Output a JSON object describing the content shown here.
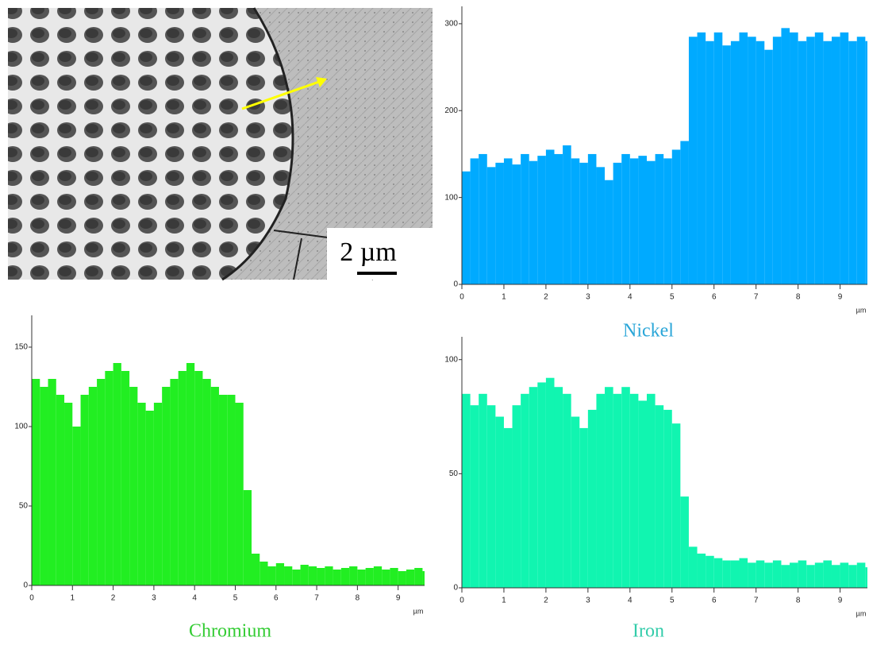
{
  "image": {
    "scale_label": "2 µm"
  },
  "chart_data": [
    {
      "type": "bar",
      "title": "Nickel",
      "x_unit": "µm",
      "color": "#00aaff",
      "title_color": "#2aa6d8",
      "x": [
        0,
        0.2,
        0.4,
        0.6,
        0.8,
        1,
        1.2,
        1.4,
        1.6,
        1.8,
        2,
        2.2,
        2.4,
        2.6,
        2.8,
        3,
        3.2,
        3.4,
        3.6,
        3.8,
        4,
        4.2,
        4.4,
        4.6,
        4.8,
        5,
        5.2,
        5.4,
        5.6,
        5.8,
        6,
        6.2,
        6.4,
        6.6,
        6.8,
        7,
        7.2,
        7.4,
        7.6,
        7.8,
        8,
        8.2,
        8.4,
        8.6,
        8.8,
        9,
        9.2,
        9.4,
        9.6
      ],
      "values": [
        130,
        145,
        150,
        135,
        140,
        145,
        138,
        150,
        142,
        148,
        155,
        150,
        160,
        145,
        140,
        150,
        135,
        120,
        140,
        150,
        145,
        148,
        142,
        150,
        145,
        155,
        165,
        285,
        290,
        280,
        290,
        275,
        280,
        290,
        285,
        280,
        270,
        285,
        295,
        290,
        280,
        285,
        290,
        280,
        285,
        290,
        280,
        285,
        280
      ],
      "xlim": [
        0,
        9.65
      ],
      "xticks": [
        0,
        1,
        2,
        3,
        4,
        5,
        6,
        7,
        8,
        9
      ],
      "ylim": [
        0,
        320
      ],
      "yticks": [
        0,
        100,
        200,
        300
      ]
    },
    {
      "type": "bar",
      "title": "Chromium",
      "x_unit": "µm",
      "color": "#22ee22",
      "title_color": "#33cc33",
      "x": [
        0,
        0.2,
        0.4,
        0.6,
        0.8,
        1,
        1.2,
        1.4,
        1.6,
        1.8,
        2,
        2.2,
        2.4,
        2.6,
        2.8,
        3,
        3.2,
        3.4,
        3.6,
        3.8,
        4,
        4.2,
        4.4,
        4.6,
        4.8,
        5,
        5.2,
        5.4,
        5.6,
        5.8,
        6,
        6.2,
        6.4,
        6.6,
        6.8,
        7,
        7.2,
        7.4,
        7.6,
        7.8,
        8,
        8.2,
        8.4,
        8.6,
        8.8,
        9,
        9.2,
        9.4,
        9.6
      ],
      "values": [
        130,
        125,
        130,
        120,
        115,
        100,
        120,
        125,
        130,
        135,
        140,
        135,
        125,
        115,
        110,
        115,
        125,
        130,
        135,
        140,
        135,
        130,
        125,
        120,
        120,
        115,
        60,
        20,
        15,
        12,
        14,
        12,
        10,
        13,
        12,
        11,
        12,
        10,
        11,
        12,
        10,
        11,
        12,
        10,
        11,
        9,
        10,
        11,
        9
      ],
      "xlim": [
        0,
        9.65
      ],
      "xticks": [
        0,
        1,
        2,
        3,
        4,
        5,
        6,
        7,
        8,
        9
      ],
      "ylim": [
        0,
        170
      ],
      "yticks": [
        0,
        50,
        100,
        150
      ]
    },
    {
      "type": "bar",
      "title": "Iron",
      "x_unit": "µm",
      "color": "#11f5b0",
      "title_color": "#33ccaa",
      "x": [
        0,
        0.2,
        0.4,
        0.6,
        0.8,
        1,
        1.2,
        1.4,
        1.6,
        1.8,
        2,
        2.2,
        2.4,
        2.6,
        2.8,
        3,
        3.2,
        3.4,
        3.6,
        3.8,
        4,
        4.2,
        4.4,
        4.6,
        4.8,
        5,
        5.2,
        5.4,
        5.6,
        5.8,
        6,
        6.2,
        6.4,
        6.6,
        6.8,
        7,
        7.2,
        7.4,
        7.6,
        7.8,
        8,
        8.2,
        8.4,
        8.6,
        8.8,
        9,
        9.2,
        9.4,
        9.6
      ],
      "values": [
        85,
        80,
        85,
        80,
        75,
        70,
        80,
        85,
        88,
        90,
        92,
        88,
        85,
        75,
        70,
        78,
        85,
        88,
        85,
        88,
        85,
        82,
        85,
        80,
        78,
        72,
        40,
        18,
        15,
        14,
        13,
        12,
        12,
        13,
        11,
        12,
        11,
        12,
        10,
        11,
        12,
        10,
        11,
        12,
        10,
        11,
        10,
        11,
        9
      ],
      "xlim": [
        0,
        9.65
      ],
      "xticks": [
        0,
        1,
        2,
        3,
        4,
        5,
        6,
        7,
        8,
        9
      ],
      "ylim": [
        0,
        110
      ],
      "yticks": [
        0,
        50,
        100
      ]
    }
  ]
}
